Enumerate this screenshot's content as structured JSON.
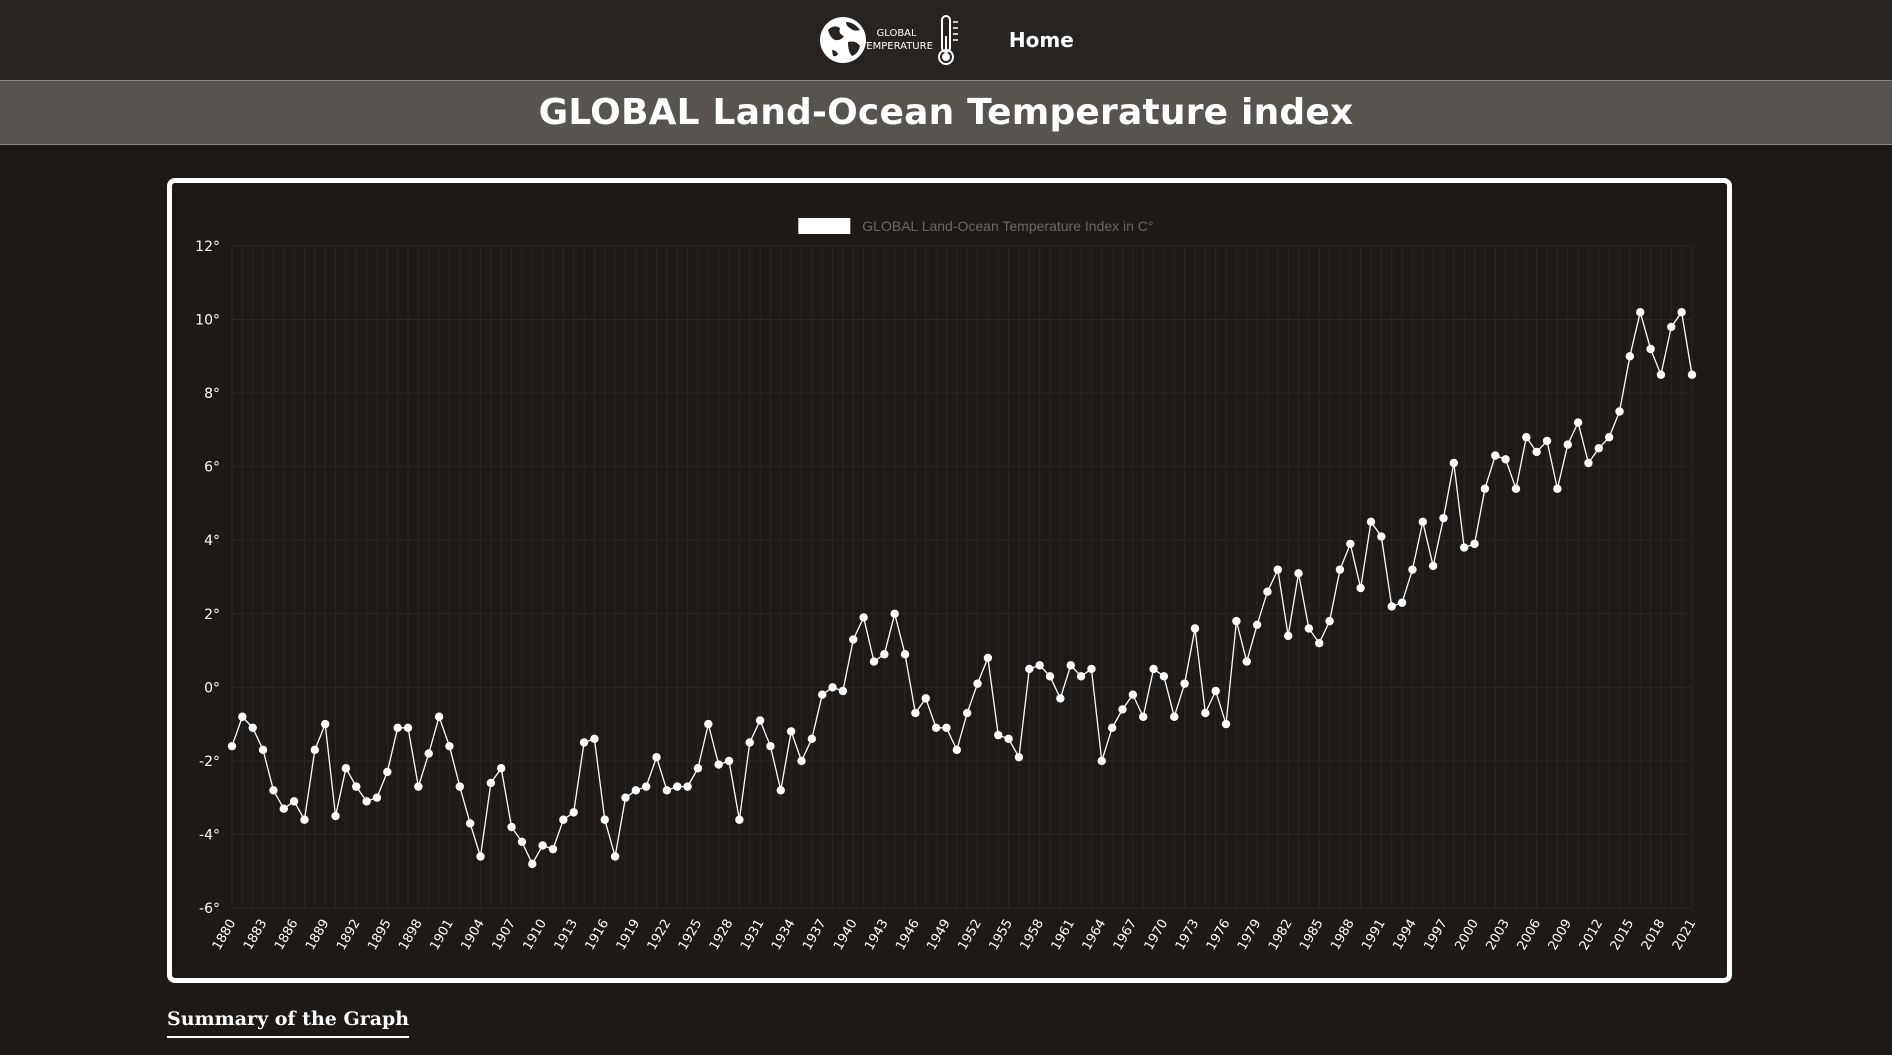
{
  "header": {
    "logo_line1": "GLOBAL",
    "logo_line2": "TEMPERATURE",
    "nav_home": "Home"
  },
  "page_title": "GLOBAL Land-Ocean Temperature index",
  "summary_heading": "Summary of the Graph",
  "colors": {
    "background": "#1c1917",
    "topbar": "#262321",
    "title_band": "#57534e",
    "line": "#ffffff",
    "grid": "#2a2725"
  },
  "chart_data": {
    "type": "line",
    "legend": "GLOBAL Land-Ocean Temperature Index in C°",
    "legend_position": "top-center",
    "grid": true,
    "ylim": [
      -6,
      12
    ],
    "y_ticks": [
      "12°",
      "10°",
      "8°",
      "6°",
      "4°",
      "2°",
      "0°",
      "-2°",
      "-4°",
      "-6°"
    ],
    "x_tick_labels": [
      "1880",
      "1883",
      "1886",
      "1889",
      "1892",
      "1895",
      "1898",
      "1901",
      "1904",
      "1907",
      "1910",
      "1913",
      "1916",
      "1919",
      "1922",
      "1925",
      "1928",
      "1931",
      "1934",
      "1937",
      "1940",
      "1943",
      "1946",
      "1949",
      "1952",
      "1955",
      "1958",
      "1961",
      "1964",
      "1967",
      "1970",
      "1973",
      "1976",
      "1979",
      "1982",
      "1985",
      "1988",
      "1991",
      "1994",
      "1997",
      "2000",
      "2003",
      "2006",
      "2009",
      "2012",
      "2015",
      "2018",
      "2021"
    ],
    "x_start": 1880,
    "x_end": 2021,
    "values": [
      -1.6,
      -0.8,
      -1.1,
      -1.7,
      -2.8,
      -3.3,
      -3.1,
      -3.6,
      -1.7,
      -1.0,
      -3.5,
      -2.2,
      -2.7,
      -3.1,
      -3.0,
      -2.3,
      -1.1,
      -1.1,
      -2.7,
      -1.8,
      -0.8,
      -1.6,
      -2.7,
      -3.7,
      -4.6,
      -2.6,
      -2.2,
      -3.8,
      -4.2,
      -4.8,
      -4.3,
      -4.4,
      -3.6,
      -3.4,
      -1.5,
      -1.4,
      -3.6,
      -4.6,
      -3.0,
      -2.8,
      -2.7,
      -1.9,
      -2.8,
      -2.7,
      -2.7,
      -2.2,
      -1.0,
      -2.1,
      -2.0,
      -3.6,
      -1.5,
      -0.9,
      -1.6,
      -2.8,
      -1.2,
      -2.0,
      -1.4,
      -0.2,
      0.0,
      -0.1,
      1.3,
      1.9,
      0.7,
      0.9,
      2.0,
      0.9,
      -0.7,
      -0.3,
      -1.1,
      -1.1,
      -1.7,
      -0.7,
      0.1,
      0.8,
      -1.3,
      -1.4,
      -1.9,
      0.5,
      0.6,
      0.3,
      -0.3,
      0.6,
      0.3,
      0.5,
      -2.0,
      -1.1,
      -0.6,
      -0.2,
      -0.8,
      0.5,
      0.3,
      -0.8,
      0.1,
      1.6,
      -0.7,
      -0.1,
      -1.0,
      1.8,
      0.7,
      1.7,
      2.6,
      3.2,
      1.4,
      3.1,
      1.6,
      1.2,
      1.8,
      3.2,
      3.9,
      2.7,
      4.5,
      4.1,
      2.2,
      2.3,
      3.2,
      4.5,
      3.3,
      4.6,
      6.1,
      3.8,
      3.9,
      5.4,
      6.3,
      6.2,
      5.4,
      6.8,
      6.4,
      6.7,
      5.4,
      6.6,
      7.2,
      6.1,
      6.5,
      6.8,
      7.5,
      9.0,
      10.2,
      9.2,
      8.5,
      9.8,
      10.2,
      8.5
    ]
  }
}
